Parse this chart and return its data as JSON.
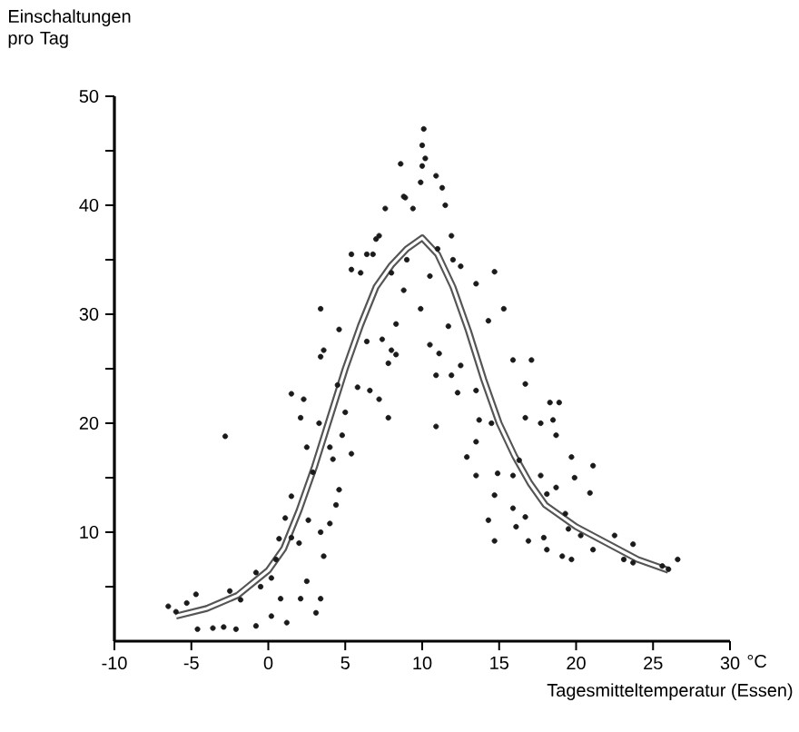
{
  "chart_data": {
    "type": "scatter",
    "ylabel": "Einschaltungen pro Tag",
    "xlabel": "Tagesmitteltemperatur (Essen)",
    "annotations": [
      "°C"
    ],
    "marker": "circle",
    "xlim": [
      -10,
      30
    ],
    "ylim": [
      0,
      50
    ],
    "xticks": [
      -10,
      -5,
      0,
      5,
      10,
      15,
      20,
      25,
      30
    ],
    "yticks": [
      {
        "value": 5,
        "label": null
      },
      10,
      {
        "value": 15,
        "label": null
      },
      20,
      {
        "value": 25,
        "label": null
      },
      30,
      {
        "value": 35,
        "label": null
      },
      40,
      {
        "value": 45,
        "label": null
      },
      50
    ],
    "series": [
      {
        "color": "#1a1a1a",
        "x": [
          -6.5,
          -6.0,
          -4.7,
          -5.3,
          -4.6,
          -3.6,
          -2.9,
          -2.1,
          -2.8,
          -2.5,
          -1.8,
          -0.8,
          0.2,
          1.2,
          -0.8,
          0.2,
          0.8,
          0.7,
          1.1,
          1.5,
          2.1,
          2.5,
          3.1,
          3.4,
          3.6,
          4.0,
          4.4,
          3.4,
          2.6,
          1.5,
          2.3,
          2.1,
          2.5,
          2.9,
          3.3,
          3.4,
          3.4,
          3.6,
          4.0,
          4.2,
          4.6,
          4.8,
          5.4,
          4.6,
          5.4,
          5.4,
          5.8,
          6.4,
          6.0,
          6.8,
          7.0,
          7.8,
          7.4,
          8.3,
          8.6,
          8.9,
          8.3,
          6.6,
          7.2,
          7.8,
          10.1,
          10.0,
          10.0,
          10.2,
          9.9,
          10.9,
          11.3,
          11.5,
          8.8,
          7.6,
          9.4,
          7.2,
          6.4,
          8.0,
          8.8,
          9.9,
          11.9,
          12.5,
          13.5,
          14.7,
          15.3,
          14.3,
          11.7,
          10.5,
          11.1,
          8.0,
          12.5,
          11.9,
          13.5,
          12.3,
          10.9,
          10.9,
          13.7,
          14.5,
          13.5,
          12.9,
          13.5,
          14.9,
          15.9,
          16.3,
          14.7,
          14.3,
          14.7,
          15.9,
          16.1,
          16.9,
          16.7,
          15.9,
          16.7,
          17.1,
          16.7,
          17.7,
          18.3,
          18.9,
          18.5,
          18.7,
          17.7,
          18.1,
          18.7,
          19.7,
          19.9,
          21.1,
          20.9,
          17.9,
          18.1,
          19.1,
          19.7,
          20.3,
          21.1,
          22.5,
          23.1,
          23.7,
          23.7,
          25.6,
          26.6,
          26.0,
          19.3,
          19.5,
          -0.5,
          0.5,
          1.5,
          2.0,
          4.5,
          5.0,
          9.0,
          10.5,
          11.0,
          12.0
        ],
        "values": [
          3.2,
          2.7,
          4.3,
          3.5,
          1.1,
          1.2,
          1.3,
          1.1,
          18.8,
          4.6,
          3.8,
          1.4,
          2.3,
          1.7,
          6.3,
          5.8,
          3.9,
          9.4,
          11.3,
          13.3,
          3.9,
          5.5,
          2.6,
          3.9,
          7.8,
          10.8,
          12.5,
          10.0,
          11.1,
          22.7,
          22.2,
          20.5,
          17.8,
          15.5,
          20.0,
          26.1,
          30.5,
          26.7,
          17.8,
          16.7,
          13.9,
          18.9,
          17.2,
          28.6,
          35.5,
          34.1,
          23.3,
          27.5,
          33.8,
          35.5,
          36.9,
          25.5,
          27.7,
          26.3,
          43.8,
          40.7,
          29.1,
          23.0,
          22.2,
          20.5,
          47.0,
          45.5,
          43.6,
          44.3,
          42.1,
          42.7,
          41.6,
          40.0,
          40.8,
          39.7,
          39.7,
          37.2,
          35.5,
          33.8,
          32.2,
          30.5,
          37.2,
          34.4,
          32.8,
          33.9,
          30.5,
          29.4,
          28.9,
          27.2,
          26.4,
          26.7,
          25.3,
          24.4,
          23.0,
          22.8,
          24.4,
          19.7,
          20.3,
          20.0,
          18.3,
          16.9,
          15.2,
          15.4,
          15.2,
          16.6,
          13.4,
          11.1,
          9.2,
          12.2,
          10.5,
          9.2,
          11.4,
          25.8,
          23.6,
          25.8,
          20.5,
          20.0,
          21.9,
          21.9,
          20.3,
          18.9,
          15.2,
          13.5,
          14.1,
          16.9,
          15.0,
          16.1,
          13.6,
          9.5,
          8.4,
          7.8,
          7.5,
          9.7,
          8.4,
          9.7,
          7.5,
          8.9,
          7.2,
          6.9,
          7.5,
          6.6,
          11.7,
          10.3,
          5.0,
          7.5,
          9.5,
          9.0,
          23.5,
          21.0,
          35.0,
          33.5,
          36.0,
          35.0
        ]
      },
      {
        "type": "line",
        "color": "#555555",
        "marker": "none",
        "x": [
          -6,
          -4,
          -2,
          0,
          1,
          2,
          3,
          4,
          5,
          6,
          7,
          8,
          9,
          10,
          11,
          12,
          13,
          14,
          15,
          16,
          17,
          18,
          20,
          22,
          24,
          26
        ],
        "values": [
          2.3,
          3.0,
          4.2,
          6.5,
          8.5,
          12,
          16,
          20.5,
          25,
          29,
          32.5,
          34.5,
          36,
          37,
          35.5,
          32.5,
          28.5,
          24,
          20,
          17,
          14.5,
          12.5,
          10.5,
          9,
          7.5,
          6.5
        ]
      }
    ]
  }
}
